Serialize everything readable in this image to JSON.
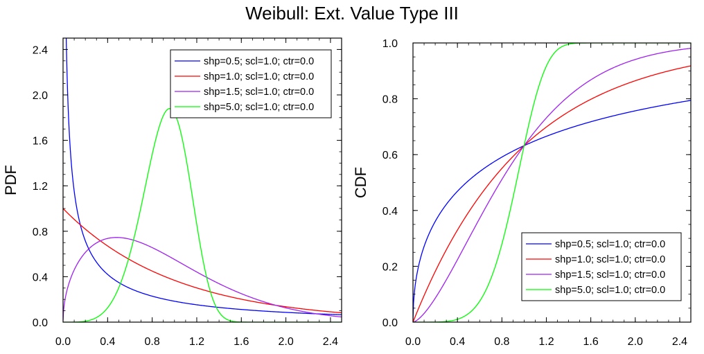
{
  "title": "Weibull: Ext. Value Type III",
  "colors": {
    "shp05": "#0000ff",
    "shp10": "#ff0000",
    "shp15": "#a020f0",
    "shp50": "#00ff00",
    "axis": "#000000",
    "legend_border": "#000000"
  },
  "chart_data": [
    {
      "type": "line",
      "name": "pdf",
      "ylabel": "PDF",
      "xlabel": "",
      "xlim": [
        0,
        2.5
      ],
      "ylim": [
        0,
        2.5
      ],
      "xticks": [
        0.0,
        0.4,
        0.8,
        1.2,
        1.6,
        2.0,
        2.4
      ],
      "xtick_labels": [
        "0.0",
        "0.4",
        "0.8",
        "1.2",
        "1.6",
        "2.0",
        "2.4"
      ],
      "yticks": [
        0.0,
        0.4,
        0.8,
        1.2,
        1.6,
        2.0,
        2.4
      ],
      "ytick_labels": [
        "0.0",
        "0.4",
        "0.8",
        "1.2",
        "1.6",
        "2.0",
        "2.4"
      ],
      "legend_position": "top-right",
      "series": [
        {
          "name": "shp=0.5; scl=1.0; ctr=0.0",
          "shape": 0.5,
          "scale": 1.0,
          "center": 0.0,
          "color_key": "shp05"
        },
        {
          "name": "shp=1.0; scl=1.0; ctr=0.0",
          "shape": 1.0,
          "scale": 1.0,
          "center": 0.0,
          "color_key": "shp10"
        },
        {
          "name": "shp=1.5; scl=1.0; ctr=0.0",
          "shape": 1.5,
          "scale": 1.0,
          "center": 0.0,
          "color_key": "shp15"
        },
        {
          "name": "shp=5.0; scl=1.0; ctr=0.0",
          "shape": 5.0,
          "scale": 1.0,
          "center": 0.0,
          "color_key": "shp50"
        }
      ]
    },
    {
      "type": "line",
      "name": "cdf",
      "ylabel": "CDF",
      "xlabel": "",
      "xlim": [
        0,
        2.5
      ],
      "ylim": [
        0,
        1.0
      ],
      "xticks": [
        0.0,
        0.4,
        0.8,
        1.2,
        1.6,
        2.0,
        2.4
      ],
      "xtick_labels": [
        "0.0",
        "0.4",
        "0.8",
        "1.2",
        "1.6",
        "2.0",
        "2.4"
      ],
      "yticks": [
        0.0,
        0.2,
        0.4,
        0.6,
        0.8,
        1.0
      ],
      "ytick_labels": [
        "0.0",
        "0.2",
        "0.4",
        "0.6",
        "0.8",
        "1.0"
      ],
      "legend_position": "bottom-right",
      "series": [
        {
          "name": "shp=0.5; scl=1.0; ctr=0.0",
          "shape": 0.5,
          "scale": 1.0,
          "center": 0.0,
          "color_key": "shp05"
        },
        {
          "name": "shp=1.0; scl=1.0; ctr=0.0",
          "shape": 1.0,
          "scale": 1.0,
          "center": 0.0,
          "color_key": "shp10"
        },
        {
          "name": "shp=1.5; scl=1.0; ctr=0.0",
          "shape": 1.5,
          "scale": 1.0,
          "center": 0.0,
          "color_key": "shp15"
        },
        {
          "name": "shp=5.0; scl=1.0; ctr=0.0",
          "shape": 5.0,
          "scale": 1.0,
          "center": 0.0,
          "color_key": "shp50"
        }
      ]
    }
  ]
}
